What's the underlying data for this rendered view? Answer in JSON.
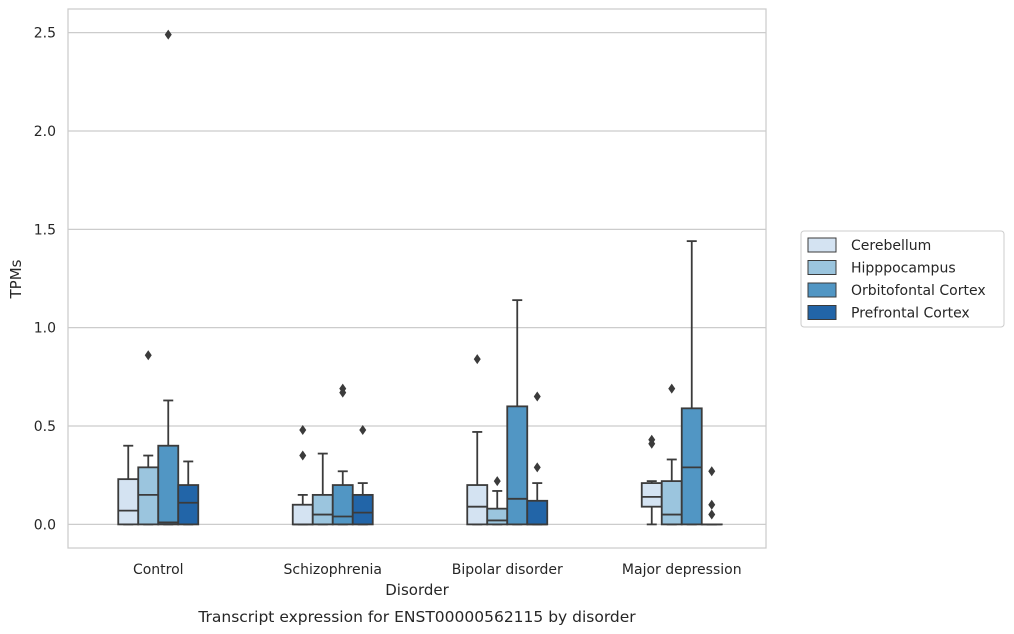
{
  "chart_data": {
    "type": "box",
    "caption": "Transcript expression for ENST00000562115 by disorder",
    "xlabel": "Disorder",
    "ylabel": "TPMs",
    "ylim": [
      -0.12,
      2.62
    ],
    "yticks": [
      0.0,
      0.5,
      1.0,
      1.5,
      2.0,
      2.5
    ],
    "ytick_labels": [
      "0.0",
      "0.5",
      "1.0",
      "1.5",
      "2.0",
      "2.5"
    ],
    "grid": "y",
    "legend_position": "right",
    "categories": [
      "Control",
      "Schizophrenia",
      "Bipolar disorder",
      "Major depression"
    ],
    "series": [
      {
        "name": "Cerebellum",
        "color": "#d4e3f2",
        "boxes": [
          {
            "whislo": 0.0,
            "q1": 0.0,
            "med": 0.07,
            "q3": 0.23,
            "whishi": 0.4,
            "fliers": []
          },
          {
            "whislo": 0.0,
            "q1": 0.0,
            "med": 0.0,
            "q3": 0.1,
            "whishi": 0.15,
            "fliers": [
              0.48,
              0.35
            ]
          },
          {
            "whislo": 0.0,
            "q1": 0.0,
            "med": 0.09,
            "q3": 0.2,
            "whishi": 0.47,
            "fliers": [
              0.84
            ]
          },
          {
            "whislo": 0.0,
            "q1": 0.09,
            "med": 0.14,
            "q3": 0.21,
            "whishi": 0.22,
            "fliers": [
              0.43,
              0.41
            ]
          }
        ]
      },
      {
        "name": "Hipppocampus",
        "color": "#9bc5de",
        "boxes": [
          {
            "whislo": 0.0,
            "q1": 0.0,
            "med": 0.15,
            "q3": 0.29,
            "whishi": 0.35,
            "fliers": [
              0.86
            ]
          },
          {
            "whislo": 0.0,
            "q1": 0.0,
            "med": 0.05,
            "q3": 0.15,
            "whishi": 0.36,
            "fliers": []
          },
          {
            "whislo": 0.0,
            "q1": 0.0,
            "med": 0.02,
            "q3": 0.08,
            "whishi": 0.17,
            "fliers": [
              0.22
            ]
          },
          {
            "whislo": 0.0,
            "q1": 0.0,
            "med": 0.05,
            "q3": 0.22,
            "whishi": 0.33,
            "fliers": [
              0.69
            ]
          }
        ]
      },
      {
        "name": "Orbitofontal Cortex",
        "color": "#5196c4",
        "boxes": [
          {
            "whislo": 0.0,
            "q1": 0.0,
            "med": 0.01,
            "q3": 0.4,
            "whishi": 0.63,
            "fliers": [
              2.49
            ]
          },
          {
            "whislo": 0.0,
            "q1": 0.0,
            "med": 0.04,
            "q3": 0.2,
            "whishi": 0.27,
            "fliers": [
              0.69,
              0.67
            ]
          },
          {
            "whislo": 0.0,
            "q1": 0.0,
            "med": 0.13,
            "q3": 0.6,
            "whishi": 1.14,
            "fliers": []
          },
          {
            "whislo": 0.0,
            "q1": 0.0,
            "med": 0.29,
            "q3": 0.59,
            "whishi": 1.44,
            "fliers": []
          }
        ]
      },
      {
        "name": "Prefrontal Cortex",
        "color": "#2265a8",
        "boxes": [
          {
            "whislo": 0.0,
            "q1": 0.0,
            "med": 0.11,
            "q3": 0.2,
            "whishi": 0.32,
            "fliers": []
          },
          {
            "whislo": 0.0,
            "q1": 0.0,
            "med": 0.06,
            "q3": 0.15,
            "whishi": 0.21,
            "fliers": [
              0.48
            ]
          },
          {
            "whislo": 0.0,
            "q1": 0.0,
            "med": 0.0,
            "q3": 0.12,
            "whishi": 0.21,
            "fliers": [
              0.65,
              0.29
            ]
          },
          {
            "whislo": 0.0,
            "q1": 0.0,
            "med": 0.0,
            "q3": 0.0,
            "whishi": 0.0,
            "fliers": [
              0.27,
              0.1,
              0.05
            ]
          }
        ]
      }
    ]
  }
}
